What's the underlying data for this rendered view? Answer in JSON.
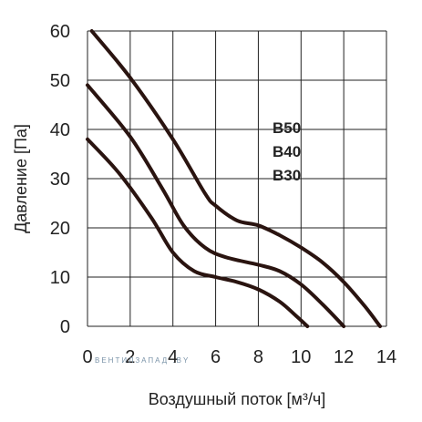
{
  "chart_data": {
    "type": "line",
    "title": "",
    "xlabel": "Воздушный поток [м³/ч]",
    "ylabel": "Давление [Па]",
    "xlim": [
      0,
      14
    ],
    "ylim": [
      0,
      60
    ],
    "x_ticks": [
      "0",
      "2",
      "4",
      "6",
      "8",
      "10",
      "12",
      "14"
    ],
    "y_ticks": [
      "0",
      "10",
      "20",
      "30",
      "40",
      "50",
      "60"
    ],
    "grid": true,
    "curve_color": "#2a1410",
    "series": [
      {
        "name": "B50",
        "points": [
          [
            0.2,
            60
          ],
          [
            2,
            50.5
          ],
          [
            4,
            38
          ],
          [
            5.5,
            27
          ],
          [
            6,
            24.5
          ],
          [
            7,
            21.5
          ],
          [
            8,
            20.5
          ],
          [
            9,
            18.5
          ],
          [
            10,
            16
          ],
          [
            11,
            13
          ],
          [
            12,
            9
          ],
          [
            13,
            4
          ],
          [
            13.7,
            0
          ]
        ]
      },
      {
        "name": "B40",
        "points": [
          [
            0,
            49
          ],
          [
            2,
            38.5
          ],
          [
            3.5,
            28
          ],
          [
            4.5,
            20.5
          ],
          [
            5.5,
            16
          ],
          [
            6.5,
            14
          ],
          [
            8,
            12.5
          ],
          [
            9,
            11.2
          ],
          [
            10,
            8.5
          ],
          [
            11,
            4.5
          ],
          [
            12,
            0
          ]
        ]
      },
      {
        "name": "B30",
        "points": [
          [
            0,
            38
          ],
          [
            1.5,
            31
          ],
          [
            3,
            22
          ],
          [
            4,
            15
          ],
          [
            5,
            11.2
          ],
          [
            6,
            10
          ],
          [
            7,
            9
          ],
          [
            8,
            7.5
          ],
          [
            9,
            5
          ],
          [
            9.8,
            2
          ],
          [
            10.3,
            0
          ]
        ]
      }
    ],
    "legend": [
      "B50",
      "B40",
      "B30"
    ],
    "watermark": "ВЕНТИЛЗАПАД .BY"
  }
}
